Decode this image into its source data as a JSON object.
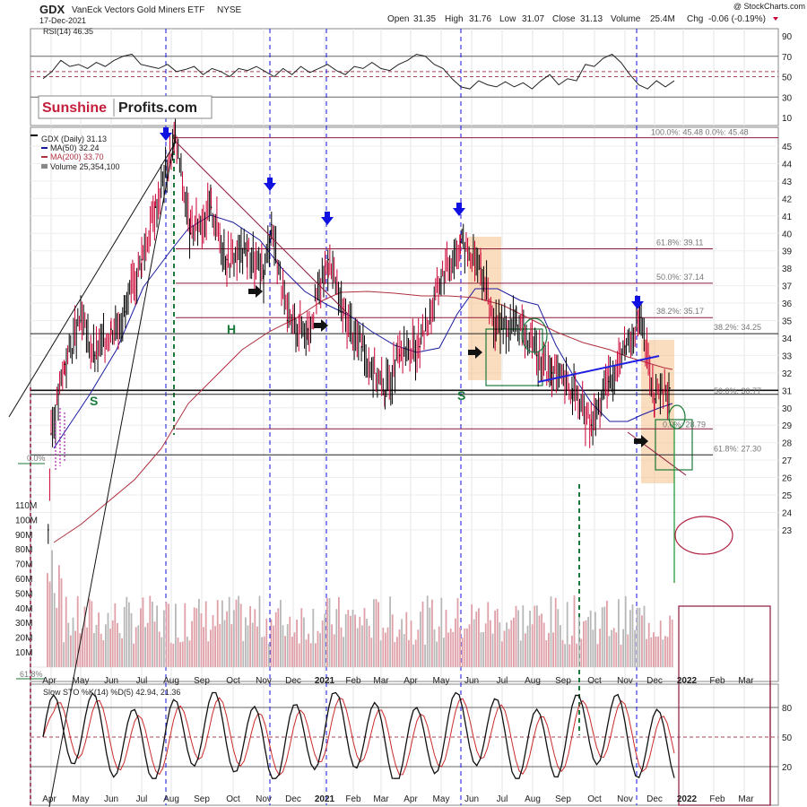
{
  "header": {
    "symbol": "GDX",
    "name": "VanEck Vectors Gold Miners ETF",
    "exchange": "NYSE",
    "date": "17-Dec-2021",
    "copyright": "@ StockCharts.com",
    "open_label": "Open",
    "open": "31.35",
    "high_label": "High",
    "high": "31.76",
    "low_label": "Low",
    "low": "31.07",
    "close_label": "Close",
    "close": "31.13",
    "volume_label": "Volume",
    "volume": "25.4M",
    "chg_label": "Chg",
    "chg": "-0.06 (-0.19%)"
  },
  "logo": {
    "part1": "Sunshine",
    "part2": "Profits.com"
  },
  "colors": {
    "price_up": "#000000",
    "price_down": "#cc0033",
    "ma50": "#1a1aa0",
    "ma200": "#b03040",
    "volume": "#e0a0a8",
    "volume_gray": "#b8b8b8",
    "fib_line": "#8b1a3a",
    "marker_blue": "#1010e0",
    "green": "#1a7a3a",
    "orange_fill": "#f5c08a"
  },
  "rsi": {
    "label": "RSI(14) 46.35",
    "ticks": [
      "90",
      "70",
      "50",
      "30",
      "10"
    ]
  },
  "legend": {
    "gdx": "GDX (Daily) 31.13",
    "ma50": "MA(50) 32.24",
    "ma200": "MA(200) 33.70",
    "volume": "Volume 25,354,100"
  },
  "price_ticks": [
    "45",
    "44",
    "43",
    "42",
    "41",
    "40",
    "39",
    "38",
    "37",
    "36",
    "35",
    "34",
    "33",
    "32",
    "31",
    "30",
    "29",
    "28",
    "27",
    "26",
    "25",
    "24",
    "23"
  ],
  "volume_ticks": [
    "110M",
    "100M",
    "90M",
    "80M",
    "70M",
    "60M",
    "50M",
    "40M",
    "30M",
    "20M",
    "10M"
  ],
  "fib_labels": {
    "f100": "100.0%: 45.48  0.0%: 45.48",
    "f618a": "61.8%: 39.11",
    "f500a": "50.0%: 37.14",
    "f382a": "38.2%: 35.17",
    "f382b": "38.2%: 34.25",
    "f500b": "50.0%: 30.77",
    "f0": "0.0%: 28.79",
    "f618b": "61.8%: 27.30",
    "left0": "0.0%",
    "left618": "61.8%"
  },
  "pattern_labels": {
    "s1": "S",
    "h": "H",
    "s2": "S"
  },
  "sto": {
    "label": "Slow STO %K(14) %D(5) 42.94, 21.36",
    "ticks": [
      "80",
      "50",
      "20"
    ]
  },
  "x_labels": [
    "Apr",
    "May",
    "Jun",
    "Jul",
    "Aug",
    "Sep",
    "Oct",
    "Nov",
    "Dec",
    "2021",
    "Feb",
    "Mar",
    "Apr",
    "May",
    "Jun",
    "Jul",
    "Aug",
    "Sep",
    "Oct",
    "Nov",
    "Dec",
    "2022",
    "Feb",
    "Mar"
  ],
  "chart_data": {
    "type": "line",
    "title": "GDX VanEck Vectors Gold Miners ETF NYSE",
    "ylim": [
      22.5,
      46.5
    ],
    "series": [
      {
        "name": "GDX (Daily) 31.13",
        "x": [
          "2020-03-23",
          "2020-04-01",
          "2020-04-15",
          "2020-05-01",
          "2020-05-15",
          "2020-06-01",
          "2020-06-15",
          "2020-07-01",
          "2020-07-15",
          "2020-08-05",
          "2020-08-20",
          "2020-09-10",
          "2020-09-25",
          "2020-10-15",
          "2020-11-01",
          "2020-11-09",
          "2020-11-25",
          "2020-12-15",
          "2021-01-05",
          "2021-01-20",
          "2021-02-10",
          "2021-03-05",
          "2021-03-20",
          "2021-04-10",
          "2021-05-01",
          "2021-05-20",
          "2021-06-10",
          "2021-06-25",
          "2021-07-15",
          "2021-08-05",
          "2021-08-20",
          "2021-09-10",
          "2021-09-28",
          "2021-10-15",
          "2021-11-01",
          "2021-11-16",
          "2021-12-01",
          "2021-12-17"
        ],
        "values": [
          23.0,
          28.5,
          32.5,
          35.0,
          33.0,
          34.5,
          35.5,
          38.5,
          41.5,
          45.5,
          40.0,
          41.5,
          38.5,
          39.0,
          37.5,
          40.5,
          35.0,
          34.5,
          38.5,
          35.5,
          33.5,
          31.0,
          33.0,
          33.5,
          37.5,
          39.5,
          38.0,
          34.5,
          35.0,
          33.0,
          32.0,
          31.0,
          29.0,
          31.5,
          33.5,
          35.2,
          30.5,
          31.13
        ]
      },
      {
        "name": "MA(50) 32.24"
      },
      {
        "name": "MA(200) 33.70"
      },
      {
        "name": "Volume 25,354,100"
      }
    ],
    "fib_levels": [
      45.48,
      39.11,
      37.14,
      35.17,
      34.25,
      30.77,
      28.79,
      27.3
    ],
    "rsi_current": 46.35,
    "sto_current": [
      42.94,
      21.36
    ]
  }
}
